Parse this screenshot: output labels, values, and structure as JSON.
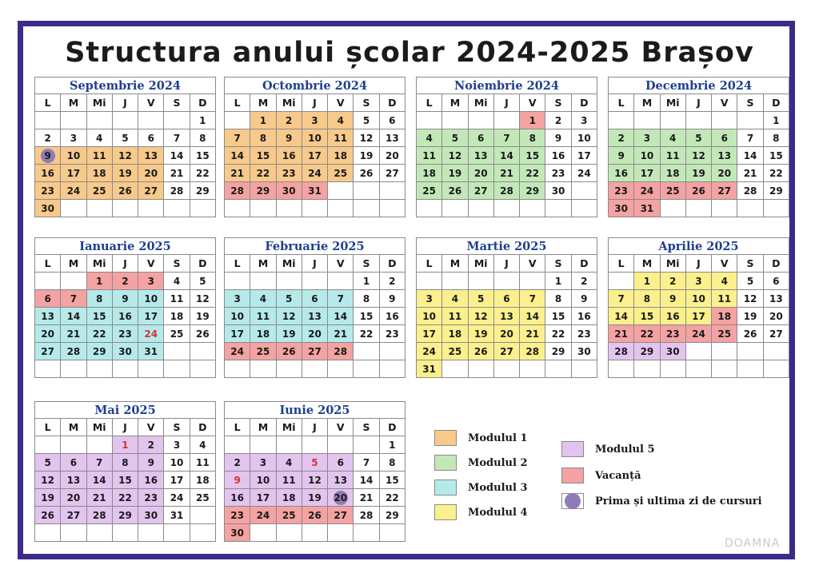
{
  "title": "Structura anului școlar 2024-2025 Brașov",
  "colors": {
    "modul1": "#f7c98b",
    "modul2": "#c3e8b8",
    "modul3": "#b6eaea",
    "modul4": "#fbf08d",
    "modul5": "#e3c4ee",
    "vacanta": "#f4a2a2",
    "first_last_day": "#8f7cb6",
    "frame": "#3d2a8a",
    "month_title": "#1f3f8f"
  },
  "weekdays": [
    "L",
    "M",
    "Mi",
    "J",
    "V",
    "S",
    "D"
  ],
  "months": [
    {
      "name": "Septembrie 2024",
      "offset": 6,
      "days": 30,
      "c1": [
        [
          9,
          13
        ],
        [
          16,
          20
        ],
        [
          23,
          27
        ],
        [
          30,
          30
        ]
      ],
      "circ": [
        9
      ]
    },
    {
      "name": "Octombrie 2024",
      "offset": 1,
      "days": 31,
      "c1": [
        [
          1,
          4
        ],
        [
          7,
          11
        ],
        [
          14,
          18
        ],
        [
          21,
          25
        ]
      ],
      "v": [
        [
          28,
          31
        ]
      ]
    },
    {
      "name": "Noiembrie 2024",
      "offset": 4,
      "days": 30,
      "v": [
        [
          1,
          1
        ]
      ],
      "c2": [
        [
          4,
          8
        ],
        [
          11,
          15
        ],
        [
          18,
          22
        ],
        [
          25,
          29
        ]
      ]
    },
    {
      "name": "Decembrie 2024",
      "offset": 6,
      "days": 31,
      "c2": [
        [
          2,
          6
        ],
        [
          9,
          13
        ],
        [
          16,
          20
        ]
      ],
      "v": [
        [
          23,
          27
        ],
        [
          30,
          31
        ]
      ]
    },
    {
      "name": "Ianuarie 2025",
      "offset": 2,
      "days": 31,
      "v": [
        [
          1,
          3
        ],
        [
          6,
          7
        ]
      ],
      "c3": [
        [
          8,
          10
        ],
        [
          13,
          17
        ],
        [
          20,
          24
        ],
        [
          27,
          31
        ]
      ],
      "red": [
        24
      ]
    },
    {
      "name": "Februarie 2025",
      "offset": 5,
      "days": 28,
      "c3": [
        [
          3,
          7
        ],
        [
          10,
          14
        ],
        [
          17,
          21
        ]
      ],
      "v": [
        [
          24,
          28
        ]
      ]
    },
    {
      "name": "Martie 2025",
      "offset": 5,
      "days": 31,
      "c4": [
        [
          3,
          7
        ],
        [
          10,
          14
        ],
        [
          17,
          21
        ],
        [
          24,
          28
        ],
        [
          31,
          31
        ]
      ]
    },
    {
      "name": "Aprilie 2025",
      "offset": 1,
      "days": 30,
      "c4": [
        [
          1,
          4
        ],
        [
          7,
          11
        ],
        [
          14,
          17
        ]
      ],
      "v": [
        [
          18,
          18
        ],
        [
          21,
          25
        ]
      ],
      "c5": [
        [
          28,
          30
        ]
      ]
    },
    {
      "name": "Mai 2025",
      "offset": 3,
      "days": 31,
      "c5": [
        [
          1,
          2
        ],
        [
          5,
          9
        ],
        [
          12,
          16
        ],
        [
          19,
          23
        ],
        [
          26,
          30
        ]
      ],
      "red": [
        1
      ]
    },
    {
      "name": "Iunie 2025",
      "offset": 6,
      "days": 30,
      "c5": [
        [
          2,
          6
        ],
        [
          9,
          13
        ],
        [
          16,
          20
        ]
      ],
      "v": [
        [
          23,
          27
        ],
        [
          30,
          30
        ]
      ],
      "red": [
        5,
        9
      ],
      "circ": [
        20
      ]
    }
  ],
  "legend": [
    {
      "key": "modul1",
      "label": "Modulul 1"
    },
    {
      "key": "modul2",
      "label": "Modulul 2"
    },
    {
      "key": "modul3",
      "label": "Modulul 3"
    },
    {
      "key": "modul4",
      "label": "Modulul 4"
    },
    {
      "key": "modul5",
      "label": "Modulul 5"
    },
    {
      "key": "vacanta",
      "label": "Vacanță"
    },
    {
      "key": "first_last_day",
      "label": "Prima și ultima zi de cursuri"
    }
  ],
  "brand": "DOAMNA"
}
